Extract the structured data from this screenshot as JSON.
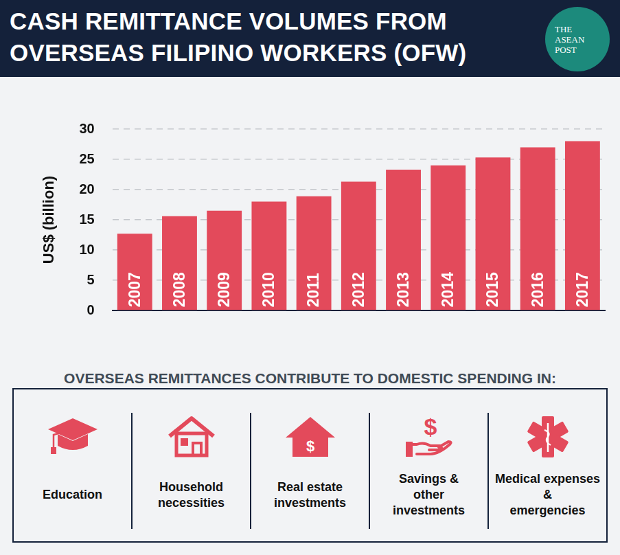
{
  "chart_data": {
    "type": "bar",
    "title": "CASH REMITTANCE VOLUMES FROM OVERSEAS FILIPINO WORKERS (OFW)",
    "y_label": "US$ (billion)",
    "categories": [
      "2007",
      "2008",
      "2009",
      "2010",
      "2011",
      "2012",
      "2013",
      "2014",
      "2015",
      "2016",
      "2017"
    ],
    "values": [
      12.7,
      15.6,
      16.5,
      18.0,
      18.9,
      21.3,
      23.3,
      24.0,
      25.3,
      27.0,
      28.0
    ],
    "color": "#e34a5b",
    "ylim": [
      0,
      30
    ],
    "yticks": [
      0,
      5,
      10,
      15,
      20,
      25,
      30
    ],
    "grid": true
  },
  "logo": "THE ASEAN POST",
  "panel": {
    "title": "OVERSEAS REMITTANCES CONTRIBUTE TO DOMESTIC SPENDING IN:",
    "items": [
      {
        "lines": [
          "Education"
        ]
      },
      {
        "lines": [
          "Household",
          "necessities"
        ]
      },
      {
        "lines": [
          "Real estate",
          "investments"
        ],
        "icon_label": "$"
      },
      {
        "lines": [
          "Savings &",
          "other",
          "investments"
        ],
        "icon_label": "$"
      },
      {
        "lines": [
          "Medical expenses",
          "&",
          "emergencies"
        ]
      }
    ]
  }
}
